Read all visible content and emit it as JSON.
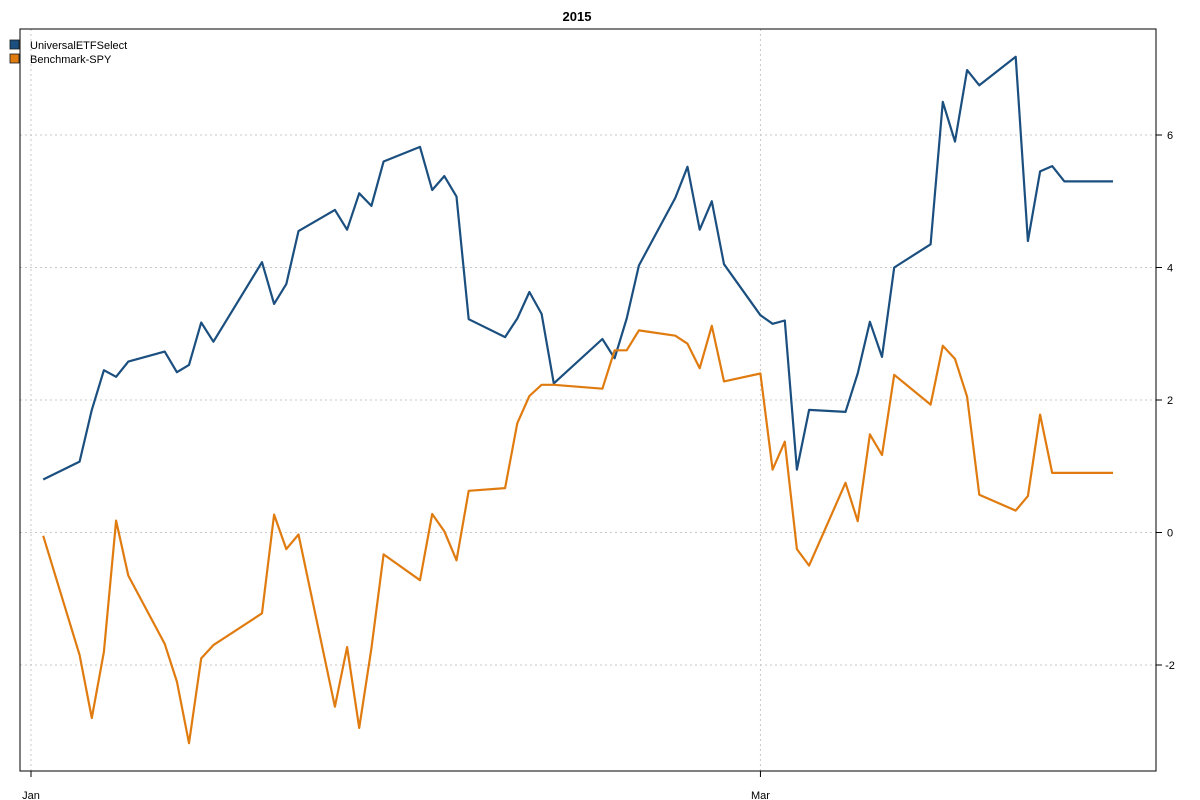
{
  "chart_data": {
    "type": "line",
    "title": "2015",
    "xlabel": "",
    "ylabel": "",
    "y_axis_side": "right",
    "ylim": [
      -3.6,
      7.6
    ],
    "yticks": [
      -2,
      0,
      2,
      4,
      6
    ],
    "grid": true,
    "legend_position": "top-left",
    "x_range": [
      "2015-01-01",
      "2015-03-31"
    ],
    "xticks": [
      {
        "label": "Jan",
        "date": "2015-01-01"
      },
      {
        "label": "Mar",
        "date": "2015-03-02"
      }
    ],
    "x": [
      "2015-01-02",
      "2015-01-05",
      "2015-01-06",
      "2015-01-07",
      "2015-01-08",
      "2015-01-09",
      "2015-01-12",
      "2015-01-13",
      "2015-01-14",
      "2015-01-15",
      "2015-01-16",
      "2015-01-20",
      "2015-01-21",
      "2015-01-22",
      "2015-01-23",
      "2015-01-26",
      "2015-01-27",
      "2015-01-28",
      "2015-01-29",
      "2015-01-30",
      "2015-02-02",
      "2015-02-03",
      "2015-02-04",
      "2015-02-05",
      "2015-02-06",
      "2015-02-09",
      "2015-02-10",
      "2015-02-11",
      "2015-02-12",
      "2015-02-13",
      "2015-02-17",
      "2015-02-18",
      "2015-02-19",
      "2015-02-20",
      "2015-02-23",
      "2015-02-24",
      "2015-02-25",
      "2015-02-26",
      "2015-02-27",
      "2015-03-02",
      "2015-03-03",
      "2015-03-04",
      "2015-03-05",
      "2015-03-06",
      "2015-03-09",
      "2015-03-10",
      "2015-03-11",
      "2015-03-12",
      "2015-03-13",
      "2015-03-16",
      "2015-03-17",
      "2015-03-18",
      "2015-03-19",
      "2015-03-20",
      "2015-03-23",
      "2015-03-24",
      "2015-03-25",
      "2015-03-26",
      "2015-03-27",
      "2015-03-30",
      "2015-03-31"
    ],
    "series": [
      {
        "name": "UniversalETFSelect",
        "color": "#1b4f7f",
        "values": [
          0.8,
          1.07,
          1.85,
          2.45,
          2.35,
          2.58,
          2.73,
          2.42,
          2.53,
          3.17,
          2.88,
          4.08,
          3.45,
          3.75,
          4.55,
          4.87,
          4.57,
          5.12,
          4.93,
          5.6,
          5.82,
          5.17,
          5.38,
          5.07,
          3.22,
          2.95,
          3.23,
          3.63,
          3.3,
          2.25,
          2.92,
          2.63,
          3.23,
          4.03,
          5.05,
          5.52,
          4.57,
          5.0,
          4.05,
          3.28,
          3.15,
          3.2,
          0.95,
          1.85,
          1.82,
          2.4,
          3.18,
          2.65,
          4.0,
          4.35,
          6.5,
          5.9,
          6.98,
          6.75,
          7.18,
          4.4,
          5.45,
          5.53,
          5.3,
          5.3,
          5.3
        ]
      },
      {
        "name": "Benchmark-SPY",
        "color": "#e07b10",
        "values": [
          -0.05,
          -1.85,
          -2.8,
          -1.8,
          0.18,
          -0.65,
          -1.68,
          -2.25,
          -3.18,
          -1.9,
          -1.7,
          -1.22,
          0.27,
          -0.25,
          -0.03,
          -2.63,
          -1.73,
          -2.95,
          -1.75,
          -0.33,
          -0.72,
          0.28,
          0.02,
          -0.42,
          0.63,
          0.67,
          1.65,
          2.06,
          2.23,
          2.23,
          2.17,
          2.75,
          2.75,
          3.05,
          2.97,
          2.85,
          2.48,
          3.12,
          2.28,
          2.4,
          0.95,
          1.37,
          -0.25,
          -0.5,
          0.75,
          0.17,
          1.48,
          1.17,
          2.38,
          1.93,
          2.82,
          2.62,
          2.05,
          0.57,
          0.33,
          0.55,
          1.78,
          0.9,
          0.9,
          0.9,
          0.9
        ]
      }
    ]
  }
}
